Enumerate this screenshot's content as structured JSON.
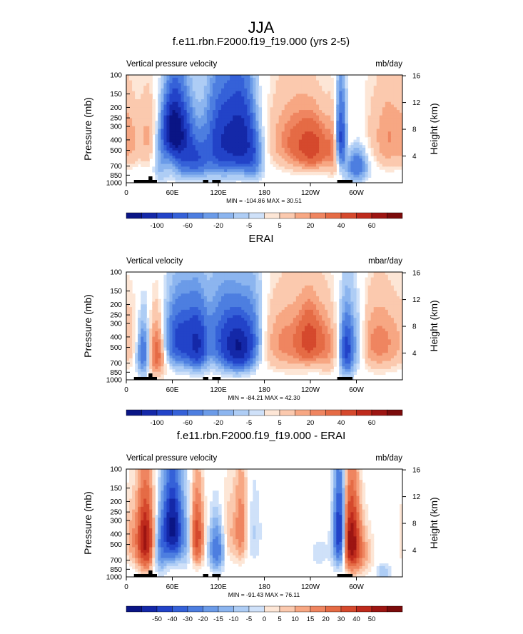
{
  "figure": {
    "title": "JJA"
  },
  "colors": {
    "positive": [
      "#fde6d6",
      "#fbc9ae",
      "#f7a783",
      "#ef8560",
      "#e56b45",
      "#d5492d",
      "#be2a1c",
      "#9d1512",
      "#7b0b0b"
    ],
    "negative": [
      "#cfe1f9",
      "#aecdf5",
      "#8cb5ef",
      "#6b9be8",
      "#4d7ee0",
      "#3561d8",
      "#2243c8",
      "#1428a8",
      "#0a1585"
    ],
    "neutral": "#ffffff",
    "topography": "#000000"
  },
  "chart_data": [
    {
      "type": "heatmap",
      "title": "f.e11.rbn.F2000.f19_f19.000 (yrs 2-5)",
      "left_label": "Vertical pressure velocity",
      "right_label": "mb/day",
      "ylabel": "Pressure (mb)",
      "y2label": "Height (km)",
      "x_ticks": [
        "0",
        "60E",
        "120E",
        "180",
        "120W",
        "60W"
      ],
      "y_ticks": [
        "100",
        "150",
        "200",
        "250",
        "300",
        "400",
        "500",
        "700",
        "850",
        "1000"
      ],
      "y2_ticks": [
        "4",
        "8",
        "12",
        "16"
      ],
      "stats": "MIN = -104.86  MAX =  30.51",
      "colorbar_labels": [
        "-100",
        "-60",
        "-20",
        "-5",
        "5",
        "20",
        "40",
        "60"
      ],
      "x_range_deg": [
        0,
        360
      ],
      "y_range_mb": [
        1000,
        100
      ],
      "features": [
        {
          "lon": 5,
          "p": 400,
          "a": 9,
          "sx": 8,
          "sp": 260
        },
        {
          "lon": 28,
          "p": 380,
          "a": 11,
          "sx": 9,
          "sp": 280
        },
        {
          "lon": 45,
          "p": 600,
          "a": -14,
          "sx": 7,
          "sp": 300
        },
        {
          "lon": 62,
          "p": 320,
          "a": -95,
          "sx": 9,
          "sp": 170
        },
        {
          "lon": 75,
          "p": 480,
          "a": -45,
          "sx": 12,
          "sp": 300
        },
        {
          "lon": 95,
          "p": 620,
          "a": -25,
          "sx": 10,
          "sp": 230
        },
        {
          "lon": 125,
          "p": 420,
          "a": -55,
          "sx": 15,
          "sp": 320
        },
        {
          "lon": 150,
          "p": 380,
          "a": -60,
          "sx": 12,
          "sp": 280
        },
        {
          "lon": 165,
          "p": 600,
          "a": -25,
          "sx": 9,
          "sp": 260
        },
        {
          "lon": 200,
          "p": 300,
          "a": 3,
          "sx": 20,
          "sp": 400
        },
        {
          "lon": 225,
          "p": 420,
          "a": 20,
          "sx": 22,
          "sp": 260
        },
        {
          "lon": 245,
          "p": 480,
          "a": 24,
          "sx": 14,
          "sp": 220
        },
        {
          "lon": 270,
          "p": 500,
          "a": 14,
          "sx": 6,
          "sp": 300
        },
        {
          "lon": 280,
          "p": 380,
          "a": -48,
          "sx": 5,
          "sp": 260
        },
        {
          "lon": 288,
          "p": 420,
          "a": 8,
          "sx": 5,
          "sp": 280
        },
        {
          "lon": 300,
          "p": 700,
          "a": -30,
          "sx": 10,
          "sp": 220
        },
        {
          "lon": 315,
          "p": 350,
          "a": 3,
          "sx": 10,
          "sp": 400
        },
        {
          "lon": 342,
          "p": 380,
          "a": 15,
          "sx": 14,
          "sp": 300
        }
      ]
    },
    {
      "type": "heatmap",
      "title": "ERAI",
      "left_label": "Vertical velocity",
      "right_label": "mbar/day",
      "ylabel": "Pressure (mb)",
      "y2label": "Height (km)",
      "x_ticks": [
        "0",
        "60E",
        "120E",
        "180",
        "120W",
        "60W"
      ],
      "y_ticks": [
        "100",
        "150",
        "200",
        "250",
        "300",
        "400",
        "500",
        "700",
        "850",
        "1000"
      ],
      "y2_ticks": [
        "4",
        "8",
        "12",
        "16"
      ],
      "stats": "MIN = -84.21  MAX =  42.30",
      "colorbar_labels": [
        "-100",
        "-60",
        "-20",
        "-5",
        "5",
        "20",
        "40",
        "60"
      ],
      "x_range_deg": [
        0,
        360
      ],
      "y_range_mb": [
        1000,
        100
      ],
      "features": [
        {
          "lon": 10,
          "p": 420,
          "a": 4,
          "sx": 10,
          "sp": 300
        },
        {
          "lon": 22,
          "p": 550,
          "a": -32,
          "sx": 6,
          "sp": 280
        },
        {
          "lon": 40,
          "p": 550,
          "a": 28,
          "sx": 8,
          "sp": 300
        },
        {
          "lon": 72,
          "p": 420,
          "a": -48,
          "sx": 15,
          "sp": 260
        },
        {
          "lon": 93,
          "p": 480,
          "a": -45,
          "sx": 8,
          "sp": 260
        },
        {
          "lon": 110,
          "p": 350,
          "a": -8,
          "sx": 12,
          "sp": 300
        },
        {
          "lon": 130,
          "p": 430,
          "a": -35,
          "sx": 14,
          "sp": 280
        },
        {
          "lon": 148,
          "p": 500,
          "a": -65,
          "sx": 12,
          "sp": 240
        },
        {
          "lon": 165,
          "p": 360,
          "a": -18,
          "sx": 10,
          "sp": 300
        },
        {
          "lon": 215,
          "p": 450,
          "a": 18,
          "sx": 28,
          "sp": 300
        },
        {
          "lon": 240,
          "p": 420,
          "a": 26,
          "sx": 10,
          "sp": 220
        },
        {
          "lon": 262,
          "p": 500,
          "a": 12,
          "sx": 8,
          "sp": 300
        },
        {
          "lon": 287,
          "p": 520,
          "a": -45,
          "sx": 6,
          "sp": 300
        },
        {
          "lon": 300,
          "p": 450,
          "a": -15,
          "sx": 8,
          "sp": 300
        },
        {
          "lon": 330,
          "p": 450,
          "a": 18,
          "sx": 22,
          "sp": 300
        }
      ]
    },
    {
      "type": "heatmap",
      "title": "f.e11.rbn.F2000.f19_f19.000 - ERAI",
      "left_label": "Vertical pressure velocity",
      "right_label": "mb/day",
      "ylabel": "Pressure (mb)",
      "y2label": "Height (km)",
      "x_ticks": [
        "0",
        "60E",
        "120E",
        "180",
        "120W",
        "60W"
      ],
      "y_ticks": [
        "100",
        "150",
        "200",
        "250",
        "300",
        "400",
        "500",
        "700",
        "850",
        "1000"
      ],
      "y2_ticks": [
        "4",
        "8",
        "12",
        "16"
      ],
      "stats": "MIN = -91.43  MAX =  76.11",
      "colorbar_labels": [
        "-50",
        "-40",
        "-30",
        "-20",
        "-15",
        "-10",
        "-5",
        "0",
        "5",
        "10",
        "15",
        "20",
        "30",
        "40",
        "50"
      ],
      "x_range_deg": [
        0,
        360
      ],
      "y_range_mb": [
        1000,
        100
      ],
      "features": [
        {
          "lon": 8,
          "p": 450,
          "a": 12,
          "sx": 8,
          "sp": 280
        },
        {
          "lon": 25,
          "p": 450,
          "a": 55,
          "sx": 7,
          "sp": 320
        },
        {
          "lon": 45,
          "p": 550,
          "a": -20,
          "sx": 6,
          "sp": 300
        },
        {
          "lon": 60,
          "p": 350,
          "a": -70,
          "sx": 8,
          "sp": 260
        },
        {
          "lon": 78,
          "p": 450,
          "a": -12,
          "sx": 8,
          "sp": 300
        },
        {
          "lon": 92,
          "p": 420,
          "a": 38,
          "sx": 6,
          "sp": 280
        },
        {
          "lon": 118,
          "p": 550,
          "a": -30,
          "sx": 7,
          "sp": 260
        },
        {
          "lon": 133,
          "p": 400,
          "a": 10,
          "sx": 8,
          "sp": 280
        },
        {
          "lon": 150,
          "p": 350,
          "a": 20,
          "sx": 6,
          "sp": 300
        },
        {
          "lon": 165,
          "p": 400,
          "a": -7,
          "sx": 8,
          "sp": 300
        },
        {
          "lon": 210,
          "p": 600,
          "a": 3,
          "sx": 20,
          "sp": 300
        },
        {
          "lon": 248,
          "p": 600,
          "a": -4,
          "sx": 20,
          "sp": 300
        },
        {
          "lon": 278,
          "p": 380,
          "a": -55,
          "sx": 5,
          "sp": 300
        },
        {
          "lon": 293,
          "p": 450,
          "a": 55,
          "sx": 7,
          "sp": 320
        },
        {
          "lon": 305,
          "p": 600,
          "a": 15,
          "sx": 10,
          "sp": 300
        },
        {
          "lon": 335,
          "p": 900,
          "a": -10,
          "sx": 6,
          "sp": 150
        }
      ]
    }
  ]
}
